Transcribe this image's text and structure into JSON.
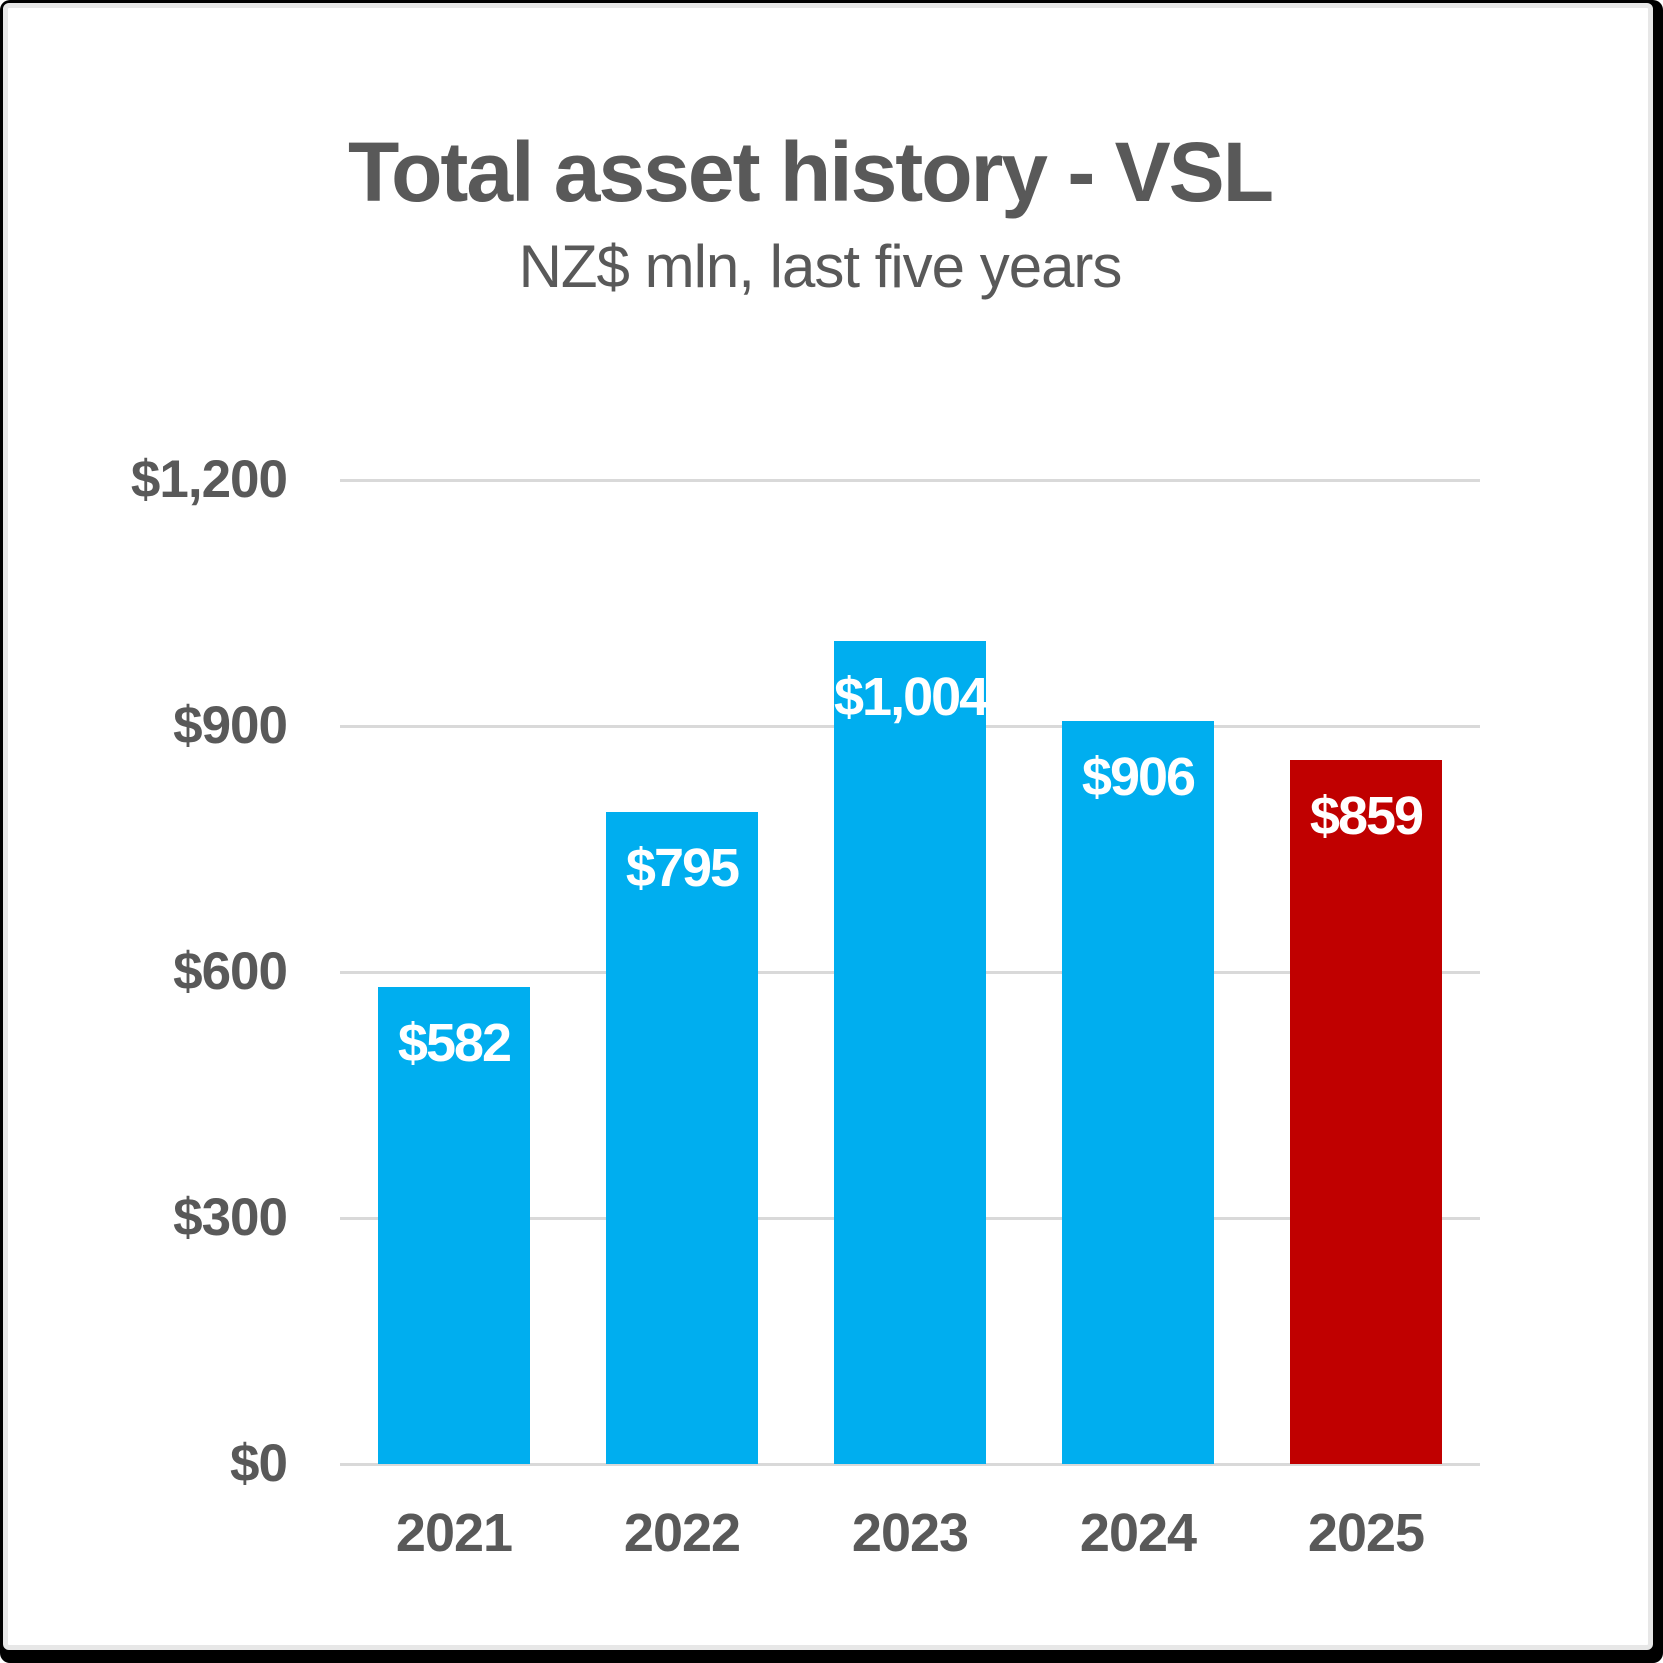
{
  "header": {
    "title": "Total asset history - VSL",
    "subtitle": "NZ$ mln, last five years"
  },
  "chart_data": {
    "type": "bar",
    "title": "Total asset history - VSL",
    "subtitle": "NZ$ mln, last five years",
    "categories": [
      "2021",
      "2022",
      "2023",
      "2024",
      "2025"
    ],
    "values": [
      582,
      795,
      1004,
      906,
      859
    ],
    "data_labels": [
      "$582",
      "$795",
      "$1,004",
      "$906",
      "$859"
    ],
    "bar_colors": [
      "#00AEEF",
      "#00AEEF",
      "#00AEEF",
      "#00AEEF",
      "#C00000"
    ],
    "highlight_category": "2025",
    "xlabel": "",
    "ylabel": "",
    "ylim": [
      0,
      1200
    ],
    "yticks": [
      {
        "value": 0,
        "label": "$0"
      },
      {
        "value": 300,
        "label": "$300"
      },
      {
        "value": 600,
        "label": "$600"
      },
      {
        "value": 900,
        "label": "$900"
      },
      {
        "value": 1200,
        "label": "$1,200"
      }
    ],
    "grid": true,
    "legend": false
  },
  "colors": {
    "bar_default": "#00AEEF",
    "bar_highlight": "#C00000",
    "text": "#595959",
    "data_label_text": "#FFFFFF",
    "gridline": "#D9D9D9",
    "background": "#FFFFFF",
    "frame": "#000000"
  }
}
